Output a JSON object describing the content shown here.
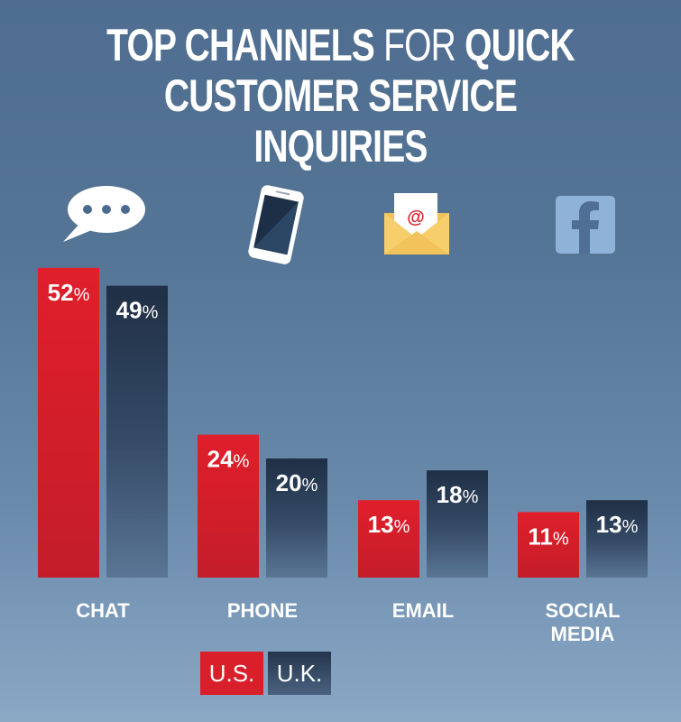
{
  "title": {
    "part1": "TOP CHANNELS ",
    "part2": "FOR",
    "part3": " QUICK",
    "line2": "CUSTOMER SERVICE INQUIRIES"
  },
  "colors": {
    "us": "#d9202a",
    "uk": "#2b3d55",
    "background": "#557596"
  },
  "icons": [
    "chat-bubble-icon",
    "smartphone-icon",
    "email-envelope-icon",
    "facebook-icon"
  ],
  "chart_data": {
    "type": "bar",
    "categories": [
      "CHAT",
      "PHONE",
      "EMAIL",
      "SOCIAL MEDIA"
    ],
    "series": [
      {
        "name": "U.S.",
        "values": [
          52,
          24,
          13,
          11
        ]
      },
      {
        "name": "U.K.",
        "values": [
          49,
          20,
          18,
          13
        ]
      }
    ],
    "unit": "%",
    "legend_position": "bottom",
    "grid": false
  },
  "legend": {
    "us": "U.S.",
    "uk": "U.K."
  }
}
